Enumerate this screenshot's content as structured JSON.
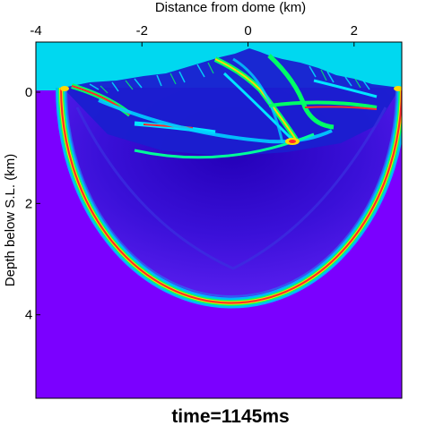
{
  "figure": {
    "x_title": "Distance from dome (km)",
    "y_title": "Depth below S.L. (km)",
    "caption": "time=1145ms",
    "x_ticks": [
      {
        "value": -4,
        "label": "-4"
      },
      {
        "value": -2,
        "label": "-2"
      },
      {
        "value": 0,
        "label": "0"
      },
      {
        "value": 2,
        "label": "2"
      }
    ],
    "y_ticks": [
      {
        "value": 0,
        "label": "0"
      },
      {
        "value": 2,
        "label": "2"
      },
      {
        "value": 4,
        "label": "4"
      }
    ],
    "x_range_km": [
      -4,
      2.9
    ],
    "y_range_km": [
      -0.9,
      5.5
    ]
  },
  "colors": {
    "background_medium": "#7b00ff",
    "air": "#00d8f0",
    "wave_red": "#ff2a2a",
    "wave_yellow": "#ffd800",
    "wave_green": "#00ff66",
    "wave_cyan": "#00e6ff",
    "wave_blue": "#1f2ad8",
    "dark_interior": "#2f00c8"
  }
}
